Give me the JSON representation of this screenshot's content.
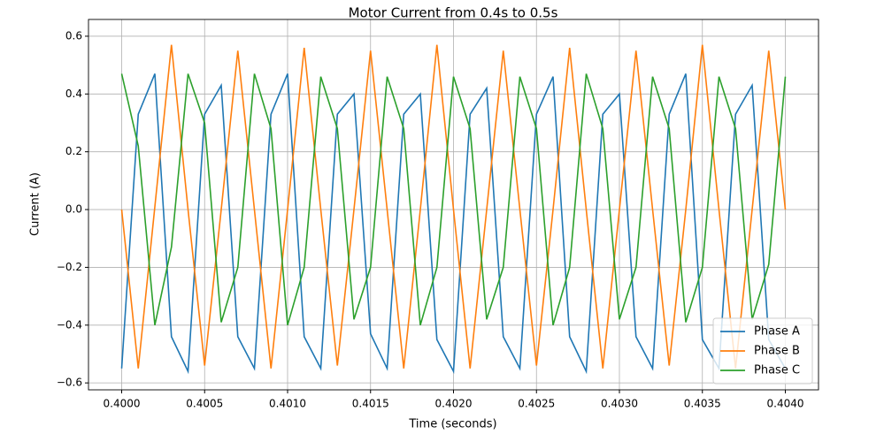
{
  "chart_data": {
    "type": "line",
    "title": "Motor Current from 0.4s to 0.5s",
    "xlabel": "Time (seconds)",
    "ylabel": "Current (A)",
    "x": [
      0.4,
      0.4001,
      0.4002,
      0.4003,
      0.4004,
      0.4005,
      0.4006,
      0.4007,
      0.4008,
      0.4009,
      0.401,
      0.4011,
      0.4012,
      0.4013,
      0.4014,
      0.4015,
      0.4016,
      0.4017,
      0.4018,
      0.4019,
      0.402,
      0.4021,
      0.4022,
      0.4023,
      0.4024,
      0.4025,
      0.4026,
      0.4027,
      0.4028,
      0.4029,
      0.403,
      0.4031,
      0.4032,
      0.4033,
      0.4034,
      0.4035,
      0.4036,
      0.4037,
      0.4038,
      0.4039,
      0.404
    ],
    "series": [
      {
        "name": "Phase A",
        "color": "#1f77b4",
        "values": [
          -0.55,
          0.33,
          0.47,
          -0.44,
          -0.56,
          0.33,
          0.43,
          -0.44,
          -0.55,
          0.33,
          0.47,
          -0.44,
          -0.55,
          0.33,
          0.4,
          -0.43,
          -0.55,
          0.33,
          0.4,
          -0.45,
          -0.56,
          0.33,
          0.42,
          -0.44,
          -0.55,
          0.33,
          0.46,
          -0.44,
          -0.56,
          0.33,
          0.4,
          -0.44,
          -0.55,
          0.33,
          0.47,
          -0.45,
          -0.55,
          0.33,
          0.43,
          -0.45,
          -0.55
        ]
      },
      {
        "name": "Phase B",
        "color": "#ff7f0e",
        "values": [
          0,
          -0.55,
          0.01,
          0.57,
          0,
          -0.54,
          0,
          0.55,
          0,
          -0.55,
          0,
          0.56,
          0,
          -0.54,
          0,
          0.55,
          0,
          -0.55,
          0,
          0.57,
          0,
          -0.55,
          0,
          0.55,
          0,
          -0.54,
          0,
          0.56,
          0,
          -0.55,
          0,
          0.55,
          0,
          -0.54,
          0,
          0.57,
          0,
          -0.55,
          0,
          0.55,
          0
        ]
      },
      {
        "name": "Phase C",
        "color": "#2ca02c",
        "values": [
          0.47,
          0.22,
          -0.4,
          -0.13,
          0.47,
          0.3,
          -0.39,
          -0.2,
          0.47,
          0.28,
          -0.4,
          -0.2,
          0.46,
          0.28,
          -0.38,
          -0.2,
          0.46,
          0.28,
          -0.4,
          -0.2,
          0.46,
          0.28,
          -0.38,
          -0.2,
          0.46,
          0.28,
          -0.4,
          -0.2,
          0.47,
          0.28,
          -0.38,
          -0.2,
          0.46,
          0.28,
          -0.39,
          -0.2,
          0.46,
          0.28,
          -0.38,
          -0.19,
          0.46
        ]
      }
    ],
    "xlim": [
      0.3998,
      0.4042
    ],
    "xticks": [
      {
        "value": 0.4,
        "label": "0.4000"
      },
      {
        "value": 0.4005,
        "label": "0.4005"
      },
      {
        "value": 0.401,
        "label": "0.4010"
      },
      {
        "value": 0.4015,
        "label": "0.4015"
      },
      {
        "value": 0.402,
        "label": "0.4020"
      },
      {
        "value": 0.4025,
        "label": "0.4025"
      },
      {
        "value": 0.403,
        "label": "0.4030"
      },
      {
        "value": 0.4035,
        "label": "0.4035"
      },
      {
        "value": 0.404,
        "label": "0.4040"
      }
    ],
    "ylim": [
      -0.624,
      0.658
    ],
    "yticks": [
      {
        "value": -0.6,
        "label": "−0.6"
      },
      {
        "value": -0.4,
        "label": "−0.4"
      },
      {
        "value": -0.2,
        "label": "−0.2"
      },
      {
        "value": 0,
        "label": "0.0"
      },
      0.2,
      0.4,
      0.6
    ],
    "grid": true,
    "legend": "lower right"
  }
}
